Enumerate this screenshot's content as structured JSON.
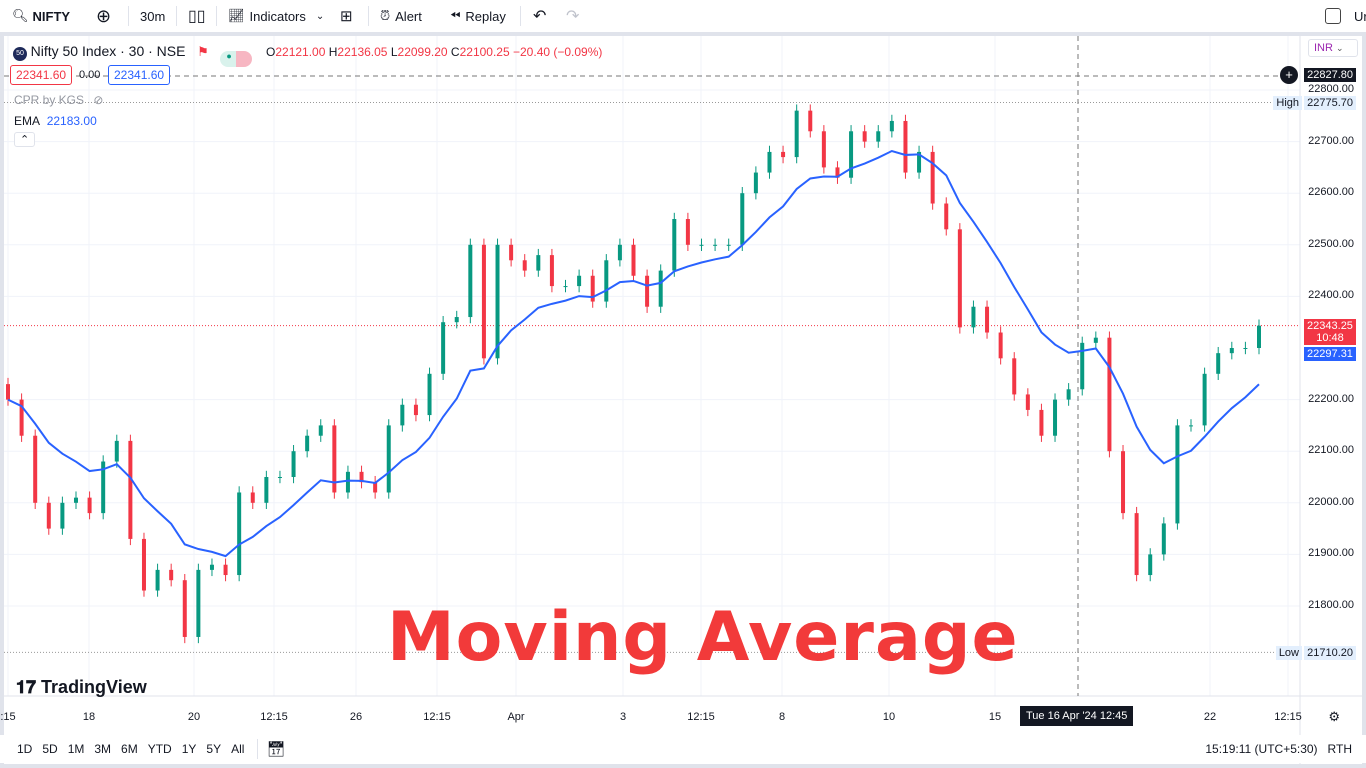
{
  "toolbar": {
    "symbol": "NIFTY",
    "interval": "30m",
    "indicators": "Indicators",
    "alert": "Alert",
    "replay": "Replay",
    "user_partial": "Ur"
  },
  "legend": {
    "title": "Nifty 50 Index · 30 · NSE",
    "logo": "50",
    "o_label": "O",
    "o": "22121.00",
    "h_label": "H",
    "h": "22136.05",
    "l_label": "L",
    "l": "22099.20",
    "c_label": "C",
    "c": "22100.25",
    "change": "−20.40 (−0.09%)",
    "sell": "22341.60",
    "spread": "0.00",
    "buy": "22341.60",
    "cpr": "CPR by KGS",
    "ema_label": "EMA",
    "ema_value": "22183.00"
  },
  "currency": "INR",
  "colors": {
    "up": "#089981",
    "down": "#f23645",
    "ema": "#2962ff",
    "watermark": "#f23a3a"
  },
  "price_axis": {
    "labels": [
      "22800.00",
      "22700.00",
      "22600.00",
      "22500.00",
      "22400.00",
      "22200.00",
      "22100.00",
      "22000.00",
      "21900.00",
      "21800.00"
    ],
    "crosshair_price": "22827.80",
    "high_label": "High",
    "high": "22775.70",
    "low_label": "Low",
    "low": "21710.20",
    "last_price": "22343.25",
    "countdown": "10:48",
    "ema_last": "22297.31"
  },
  "time_axis": {
    "labels": [
      ":15",
      "18",
      "20",
      "12:15",
      "26",
      "12:15",
      "Apr",
      "3",
      "12:15",
      "8",
      "10",
      "15",
      "22",
      "12:15"
    ],
    "crosshair": "Tue 16 Apr '24  12:45"
  },
  "watermark": "Moving Average",
  "brand": "TradingView",
  "bottom": {
    "ranges": [
      "1D",
      "5D",
      "1M",
      "3M",
      "6M",
      "YTD",
      "1Y",
      "5Y",
      "All"
    ],
    "clock": "15:19:11 (UTC+5:30)",
    "session": "RTH"
  },
  "chart_data": {
    "type": "candlestick",
    "ylim": [
      21710.2,
      22827.8
    ],
    "grid": true,
    "indicator": "EMA",
    "closes": [
      22200,
      22130,
      22000,
      21950,
      22000,
      22010,
      21980,
      22080,
      22120,
      21930,
      21830,
      21870,
      21850,
      21740,
      21870,
      21880,
      21860,
      22020,
      22000,
      22050,
      22050,
      22100,
      22130,
      22150,
      22020,
      22060,
      22040,
      22020,
      22150,
      22190,
      22170,
      22250,
      22350,
      22360,
      22500,
      22280,
      22500,
      22470,
      22450,
      22480,
      22420,
      22420,
      22440,
      22390,
      22470,
      22500,
      22440,
      22380,
      22450,
      22550,
      22500,
      22500,
      22500,
      22500,
      22600,
      22640,
      22680,
      22670,
      22760,
      22720,
      22650,
      22630,
      22720,
      22700,
      22720,
      22740,
      22640,
      22680,
      22580,
      22530,
      22340,
      22380,
      22330,
      22280,
      22210,
      22180,
      22130,
      22200,
      22220,
      22310,
      22320,
      22100,
      21980,
      21860,
      21900,
      21960,
      22150,
      22150,
      22250,
      22290,
      22300,
      22300,
      22343.25
    ]
  }
}
